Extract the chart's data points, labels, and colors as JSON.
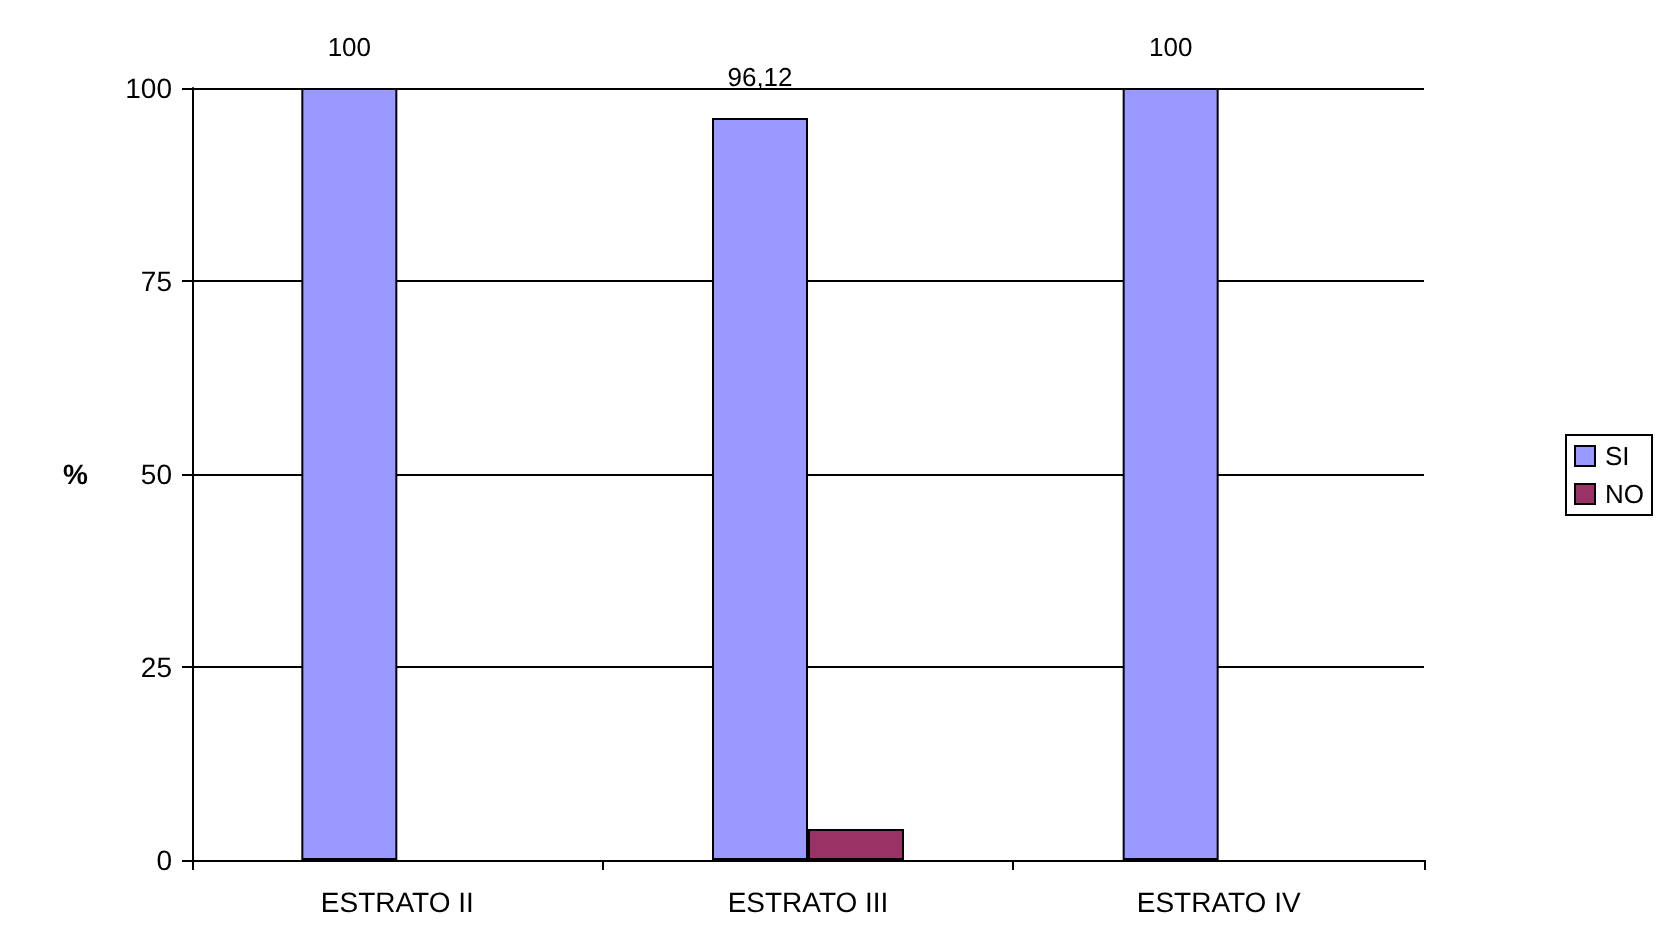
{
  "chart_data": {
    "type": "bar",
    "ylabel": "%",
    "categories": [
      "ESTRATO II",
      "ESTRATO III",
      "ESTRATO IV"
    ],
    "series": [
      {
        "name": "SI",
        "color": "#9999ff",
        "values": [
          100,
          96.12,
          100
        ],
        "value_labels": [
          "100",
          "96,12",
          "100"
        ]
      },
      {
        "name": "NO",
        "color": "#993366",
        "values": [
          null,
          4,
          null
        ],
        "value_labels": [
          null,
          null,
          null
        ]
      }
    ],
    "ylim": [
      0,
      100
    ],
    "yticks": [
      0,
      25,
      50,
      75,
      100
    ],
    "grid": "y",
    "legend": "right"
  }
}
